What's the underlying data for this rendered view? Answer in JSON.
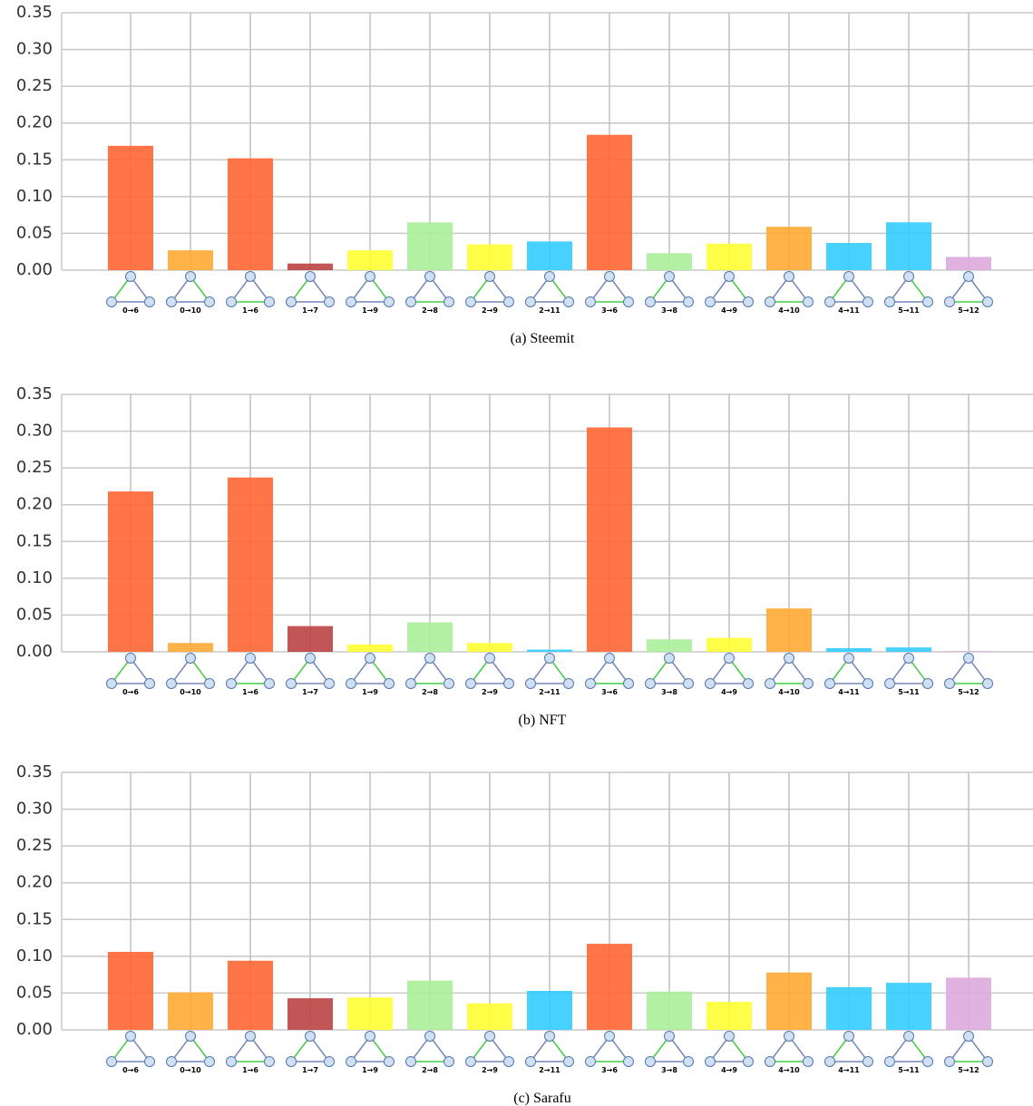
{
  "chart_data": [
    {
      "type": "bar",
      "caption": "(a) Steemit",
      "categories": [
        "0→6",
        "0→10",
        "1→6",
        "1→7",
        "1→9",
        "2→8",
        "2→9",
        "2→11",
        "3→6",
        "3→8",
        "4→9",
        "4→10",
        "4→11",
        "5→11",
        "5→12"
      ],
      "values": [
        0.169,
        0.027,
        0.152,
        0.009,
        0.027,
        0.065,
        0.035,
        0.039,
        0.184,
        0.023,
        0.036,
        0.059,
        0.037,
        0.065,
        0.018
      ],
      "colors": [
        "#ff6633",
        "#ffaa33",
        "#ff6633",
        "#bb4444",
        "#ffff33",
        "#aaee99",
        "#ffff33",
        "#33ccff",
        "#ff6633",
        "#aaee99",
        "#ffff33",
        "#ffaa33",
        "#33ccff",
        "#33ccff",
        "#ddaadd"
      ],
      "ylim": [
        0,
        0.35
      ],
      "yticks": [
        {
          "value": 0,
          "label": "0.00"
        },
        {
          "value": 0.05,
          "label": "0.05"
        },
        {
          "value": 0.1,
          "label": "0.10"
        },
        {
          "value": 0.15,
          "label": "0.15"
        },
        {
          "value": 0.2,
          "label": "0.20"
        },
        {
          "value": 0.25,
          "label": "0.25"
        },
        {
          "value": 0.3,
          "label": "0.30"
        },
        {
          "value": 0.35,
          "label": "0.35"
        }
      ],
      "grid": true
    },
    {
      "type": "bar",
      "caption": "(b) NFT",
      "categories": [
        "0→6",
        "0→10",
        "1→6",
        "1→7",
        "1→9",
        "2→8",
        "2→9",
        "2→11",
        "3→6",
        "3→8",
        "4→9",
        "4→10",
        "4→11",
        "5→11",
        "5→12"
      ],
      "values": [
        0.218,
        0.012,
        0.237,
        0.035,
        0.01,
        0.04,
        0.012,
        0.003,
        0.305,
        0.017,
        0.019,
        0.059,
        0.005,
        0.006,
        0.001
      ],
      "colors": [
        "#ff6633",
        "#ffaa33",
        "#ff6633",
        "#bb4444",
        "#ffff33",
        "#aaee99",
        "#ffff33",
        "#33ccff",
        "#ff6633",
        "#aaee99",
        "#ffff33",
        "#ffaa33",
        "#33ccff",
        "#33ccff",
        "#ddaadd"
      ],
      "ylim": [
        0,
        0.35
      ],
      "yticks": [
        {
          "value": 0,
          "label": "0.00"
        },
        {
          "value": 0.05,
          "label": "0.05"
        },
        {
          "value": 0.1,
          "label": "0.10"
        },
        {
          "value": 0.15,
          "label": "0.15"
        },
        {
          "value": 0.2,
          "label": "0.20"
        },
        {
          "value": 0.25,
          "label": "0.25"
        },
        {
          "value": 0.3,
          "label": "0.30"
        },
        {
          "value": 0.35,
          "label": "0.35"
        }
      ],
      "grid": true
    },
    {
      "type": "bar",
      "caption": "(c) Sarafu",
      "categories": [
        "0→6",
        "0→10",
        "1→6",
        "1→7",
        "1→9",
        "2→8",
        "2→9",
        "2→11",
        "3→6",
        "3→8",
        "4→9",
        "4→10",
        "4→11",
        "5→11",
        "5→12"
      ],
      "values": [
        0.106,
        0.051,
        0.094,
        0.043,
        0.044,
        0.067,
        0.036,
        0.053,
        0.117,
        0.052,
        0.038,
        0.078,
        0.058,
        0.064,
        0.071
      ],
      "colors": [
        "#ff6633",
        "#ffaa33",
        "#ff6633",
        "#bb4444",
        "#ffff33",
        "#aaee99",
        "#ffff33",
        "#33ccff",
        "#ff6633",
        "#aaee99",
        "#ffff33",
        "#ffaa33",
        "#33ccff",
        "#33ccff",
        "#ddaadd"
      ],
      "ylim": [
        0,
        0.35
      ],
      "yticks": [
        {
          "value": 0,
          "label": "0.00"
        },
        {
          "value": 0.05,
          "label": "0.05"
        },
        {
          "value": 0.1,
          "label": "0.10"
        },
        {
          "value": 0.15,
          "label": "0.15"
        },
        {
          "value": 0.2,
          "label": "0.20"
        },
        {
          "value": 0.25,
          "label": "0.25"
        },
        {
          "value": 0.3,
          "label": "0.30"
        },
        {
          "value": 0.35,
          "label": "0.35"
        }
      ],
      "grid": true
    }
  ]
}
